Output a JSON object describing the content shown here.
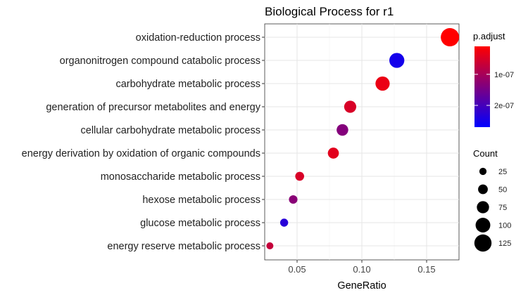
{
  "chart_data": {
    "type": "scatter",
    "title": "Biological Process for r1",
    "xlabel": "GeneRatio",
    "ylabel": "",
    "xlim": [
      0.025,
      0.175
    ],
    "x_ticks": [
      0.05,
      0.1,
      0.15
    ],
    "x_tick_labels": [
      "0.05",
      "0.10",
      "0.15"
    ],
    "grid": true,
    "categories": [
      "oxidation-reduction process",
      "organonitrogen compound catabolic process",
      "carbohydrate metabolic process",
      "generation of precursor metabolites and energy",
      "cellular carbohydrate metabolic process",
      "energy derivation by oxidation of organic compounds",
      "monosaccharide metabolic process",
      "hexose metabolic process",
      "glucose metabolic process",
      "energy reserve metabolic process"
    ],
    "points": [
      {
        "term": "oxidation-reduction process",
        "gene_ratio": 0.168,
        "count": 136,
        "p_adjust": 1e-08
      },
      {
        "term": "organonitrogen compound catabolic process",
        "gene_ratio": 0.127,
        "count": 103,
        "p_adjust": 2.5e-07
      },
      {
        "term": "carbohydrate metabolic process",
        "gene_ratio": 0.116,
        "count": 95,
        "p_adjust": 3e-08
      },
      {
        "term": "generation of precursor metabolites and energy",
        "gene_ratio": 0.091,
        "count": 74,
        "p_adjust": 5e-08
      },
      {
        "term": "cellular carbohydrate metabolic process",
        "gene_ratio": 0.085,
        "count": 69,
        "p_adjust": 1.35e-07
      },
      {
        "term": "energy derivation by oxidation of organic compounds",
        "gene_ratio": 0.078,
        "count": 63,
        "p_adjust": 4e-08
      },
      {
        "term": "monosaccharide metabolic process",
        "gene_ratio": 0.052,
        "count": 42,
        "p_adjust": 5e-08
      },
      {
        "term": "hexose metabolic process",
        "gene_ratio": 0.047,
        "count": 38,
        "p_adjust": 1.3e-07
      },
      {
        "term": "glucose metabolic process",
        "gene_ratio": 0.04,
        "count": 33,
        "p_adjust": 2.3e-07
      },
      {
        "term": "energy reserve metabolic process",
        "gene_ratio": 0.029,
        "count": 23,
        "p_adjust": 7e-08
      }
    ],
    "color_legend": {
      "title": "p.adjust",
      "low_color": "#ff0000",
      "high_color": "#0000ff",
      "range": [
        1e-08,
        2.7e-07
      ],
      "tick_values": [
        1e-07,
        2e-07
      ],
      "tick_labels": [
        "1e-07",
        "2e-07"
      ]
    },
    "size_legend": {
      "title": "Count",
      "values": [
        25,
        50,
        75,
        100,
        125
      ],
      "labels": [
        "25",
        "50",
        "75",
        "100",
        "125"
      ],
      "range": [
        23,
        136
      ]
    },
    "legend_position": "right"
  }
}
